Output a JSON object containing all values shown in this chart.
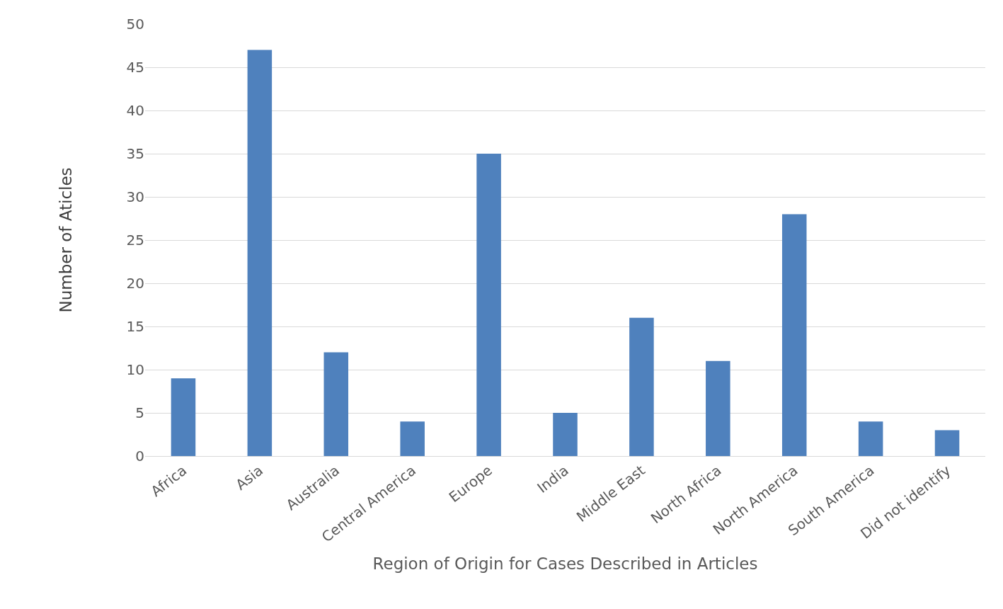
{
  "chart_data": {
    "type": "bar",
    "xlabel": "Region of Origin for Cases Described in Articles",
    "ylabel": "Number of Aticles",
    "categories": [
      "Africa",
      "Asia",
      "Australia",
      "Central America",
      "Europe",
      "India",
      "Middle East",
      "North Africa",
      "North America",
      "South America",
      "Did not identify"
    ],
    "values": [
      9,
      47,
      12,
      4,
      35,
      5,
      16,
      11,
      28,
      4,
      3
    ],
    "color": "#4f81bd",
    "ylim": [
      0,
      50
    ],
    "yticks": [
      0,
      5,
      10,
      15,
      20,
      25,
      30,
      35,
      40,
      45,
      50
    ],
    "grid": "y"
  }
}
